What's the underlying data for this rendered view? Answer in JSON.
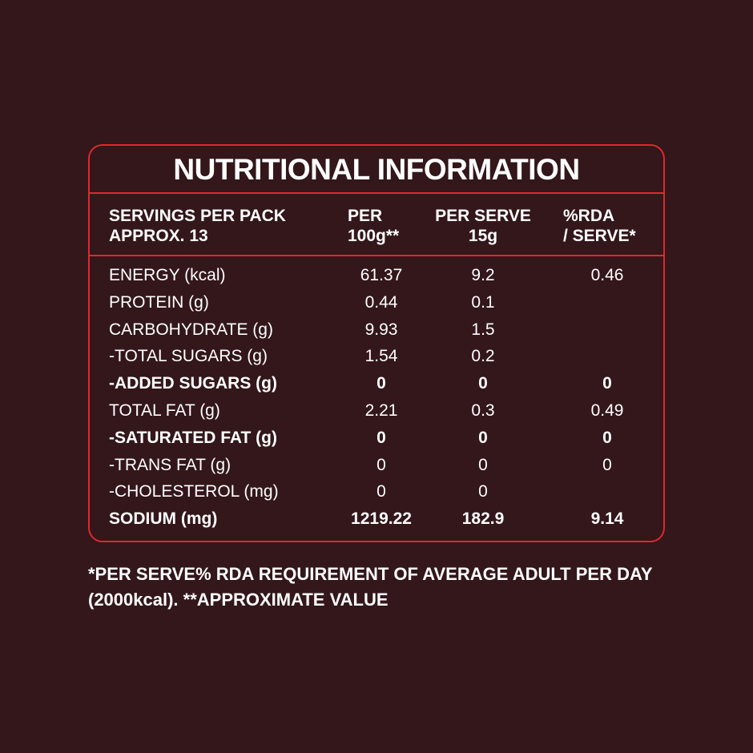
{
  "title": "NUTRITIONAL INFORMATION",
  "header": {
    "servings": [
      "SERVINGS PER PACK",
      "APPROX. 13"
    ],
    "per100g": [
      "PER",
      "100g**"
    ],
    "perServe": [
      "PER SERVE",
      "15g"
    ],
    "rda": [
      "%RDA",
      "/ SERVE*"
    ]
  },
  "rows": [
    {
      "label": "ENERGY (kcal)",
      "per100g": "61.37",
      "perServe": "9.2",
      "rda": "0.46",
      "bold": false
    },
    {
      "label": "PROTEIN (g)",
      "per100g": "0.44",
      "perServe": "0.1",
      "bold": false
    },
    {
      "label": "CARBOHYDRATE (g)",
      "per100g": "9.93",
      "perServe": "1.5",
      "bold": false
    },
    {
      "label": "-TOTAL SUGARS (g)",
      "per100g": "1.54",
      "perServe": "0.2",
      "bold": false
    },
    {
      "label": "-ADDED SUGARS (g)",
      "per100g": "0",
      "perServe": "0",
      "rda": "0",
      "bold": true
    },
    {
      "label": "TOTAL FAT (g)",
      "per100g": "2.21",
      "perServe": "0.3",
      "rda": "0.49",
      "bold": false
    },
    {
      "label": "-SATURATED FAT (g)",
      "per100g": "0",
      "perServe": "0",
      "rda": "0",
      "bold": true
    },
    {
      "label": "-TRANS FAT (g)",
      "per100g": "0",
      "perServe": "0",
      "rda": "0",
      "bold": false
    },
    {
      "label": "-CHOLESTEROL (mg)",
      "per100g": "0",
      "perServe": "0",
      "bold": false
    },
    {
      "label": "SODIUM (mg)",
      "per100g": "1219.22",
      "perServe": "182.9",
      "rda": "9.14",
      "bold": true
    }
  ],
  "footnote": [
    "*PER SERVE% RDA REQUIREMENT OF AVERAGE ADULT PER DAY",
    "(2000kcal). **APPROXIMATE VALUE"
  ]
}
